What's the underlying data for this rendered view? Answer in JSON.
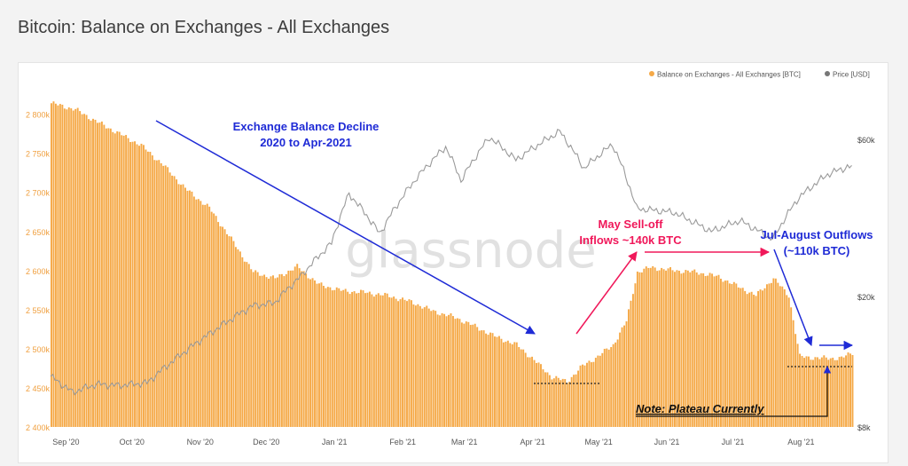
{
  "page": {
    "title": "Bitcoin: Balance on Exchanges - All Exchanges"
  },
  "colors": {
    "balance": "#f5a947",
    "balance_edge": "#ec9a2f",
    "price": "#9a9a9a",
    "blue_annotation": "#1f2bd6",
    "red_annotation": "#f0185a",
    "axis_text": "#f0a040",
    "price_axis_text": "#444444",
    "watermark": "#c9c9c9"
  },
  "chart_data": {
    "type": "bar",
    "title": "Bitcoin: Balance on Exchanges - All Exchanges",
    "legend": {
      "placement": "top-right",
      "entries": [
        {
          "name": "Balance on Exchanges - All Exchanges [BTC]",
          "color": "#f5a947"
        },
        {
          "name": "Price [USD]",
          "color": "#777777"
        }
      ]
    },
    "x_ticks": [
      "Sep '20",
      "Oct '20",
      "Nov '20",
      "Dec '20",
      "Jan '21",
      "Feb '21",
      "Mar '21",
      "Apr '21",
      "May '21",
      "Jun '21",
      "Jul '21",
      "Aug '21"
    ],
    "y_left": {
      "ylim": [
        2400000,
        2820000
      ],
      "ticks": [
        "2 400k",
        "2 450k",
        "2 500k",
        "2 550k",
        "2 600k",
        "2 650k",
        "2 700k",
        "2 750k",
        "2 800k"
      ],
      "tick_values": [
        2400000,
        2450000,
        2500000,
        2550000,
        2600000,
        2650000,
        2700000,
        2750000,
        2800000
      ]
    },
    "y_right": {
      "scale": "log",
      "ylim": [
        8000,
        80000
      ],
      "ticks": [
        "$8k",
        "$20k",
        "$60k"
      ],
      "tick_values": [
        8000,
        20000,
        60000
      ]
    },
    "date_range": [
      "2020-08-25",
      "2021-08-25"
    ],
    "series": [
      {
        "name": "Balance on Exchanges - All Exchanges [BTC]",
        "kind": "bar",
        "axis": "left",
        "points": [
          [
            "2020-08-25",
            2814000
          ],
          [
            "2020-09-05",
            2806000
          ],
          [
            "2020-09-15",
            2790000
          ],
          [
            "2020-09-25",
            2775000
          ],
          [
            "2020-10-05",
            2760000
          ],
          [
            "2020-10-15",
            2735000
          ],
          [
            "2020-10-25",
            2705000
          ],
          [
            "2020-11-05",
            2680000
          ],
          [
            "2020-11-15",
            2640000
          ],
          [
            "2020-11-25",
            2598000
          ],
          [
            "2020-12-05",
            2590000
          ],
          [
            "2020-12-15",
            2605000
          ],
          [
            "2020-12-25",
            2582000
          ],
          [
            "2021-01-05",
            2574000
          ],
          [
            "2021-01-15",
            2572000
          ],
          [
            "2021-01-25",
            2568000
          ],
          [
            "2021-02-05",
            2560000
          ],
          [
            "2021-02-15",
            2548000
          ],
          [
            "2021-02-25",
            2540000
          ],
          [
            "2021-03-05",
            2530000
          ],
          [
            "2021-03-15",
            2516000
          ],
          [
            "2021-03-25",
            2505000
          ],
          [
            "2021-04-01",
            2488000
          ],
          [
            "2021-04-10",
            2464000
          ],
          [
            "2021-04-17",
            2458000
          ],
          [
            "2021-04-24",
            2478000
          ],
          [
            "2021-05-01",
            2490000
          ],
          [
            "2021-05-08",
            2505000
          ],
          [
            "2021-05-14",
            2535000
          ],
          [
            "2021-05-19",
            2598000
          ],
          [
            "2021-05-25",
            2604000
          ],
          [
            "2021-06-05",
            2600000
          ],
          [
            "2021-06-15",
            2598000
          ],
          [
            "2021-06-25",
            2592000
          ],
          [
            "2021-07-05",
            2578000
          ],
          [
            "2021-07-12",
            2568000
          ],
          [
            "2021-07-20",
            2590000
          ],
          [
            "2021-07-27",
            2568000
          ],
          [
            "2021-08-01",
            2490000
          ],
          [
            "2021-08-10",
            2488000
          ],
          [
            "2021-08-20",
            2488000
          ],
          [
            "2021-08-25",
            2495000
          ]
        ]
      },
      {
        "name": "Price [USD]",
        "kind": "line",
        "axis": "right",
        "points": [
          [
            "2020-08-25",
            11400
          ],
          [
            "2020-09-04",
            10200
          ],
          [
            "2020-09-15",
            10800
          ],
          [
            "2020-09-25",
            10700
          ],
          [
            "2020-10-08",
            10900
          ],
          [
            "2020-10-21",
            12900
          ],
          [
            "2020-11-05",
            15300
          ],
          [
            "2020-11-25",
            18700
          ],
          [
            "2020-12-05",
            19100
          ],
          [
            "2020-12-17",
            23000
          ],
          [
            "2020-12-31",
            29000
          ],
          [
            "2021-01-08",
            41000
          ],
          [
            "2021-01-22",
            31000
          ],
          [
            "2021-02-08",
            46000
          ],
          [
            "2021-02-21",
            57000
          ],
          [
            "2021-02-28",
            45000
          ],
          [
            "2021-03-13",
            61000
          ],
          [
            "2021-03-25",
            52000
          ],
          [
            "2021-04-14",
            63500
          ],
          [
            "2021-04-25",
            49000
          ],
          [
            "2021-05-08",
            58000
          ],
          [
            "2021-05-19",
            37000
          ],
          [
            "2021-06-05",
            36000
          ],
          [
            "2021-06-22",
            31500
          ],
          [
            "2021-07-05",
            34000
          ],
          [
            "2021-07-20",
            29800
          ],
          [
            "2021-08-01",
            40000
          ],
          [
            "2021-08-14",
            47000
          ],
          [
            "2021-08-23",
            49500
          ]
        ]
      }
    ],
    "annotations": {
      "decline": [
        "Exchange Balance Decline",
        "2020 to Apr-2021"
      ],
      "may": [
        "May Sell-off",
        "Inflows ~140k BTC"
      ],
      "jul": [
        "Jul-August Outflows",
        "(~110k BTC)"
      ],
      "note": "Note: Plateau Currently",
      "watermark": "glassnode"
    }
  }
}
